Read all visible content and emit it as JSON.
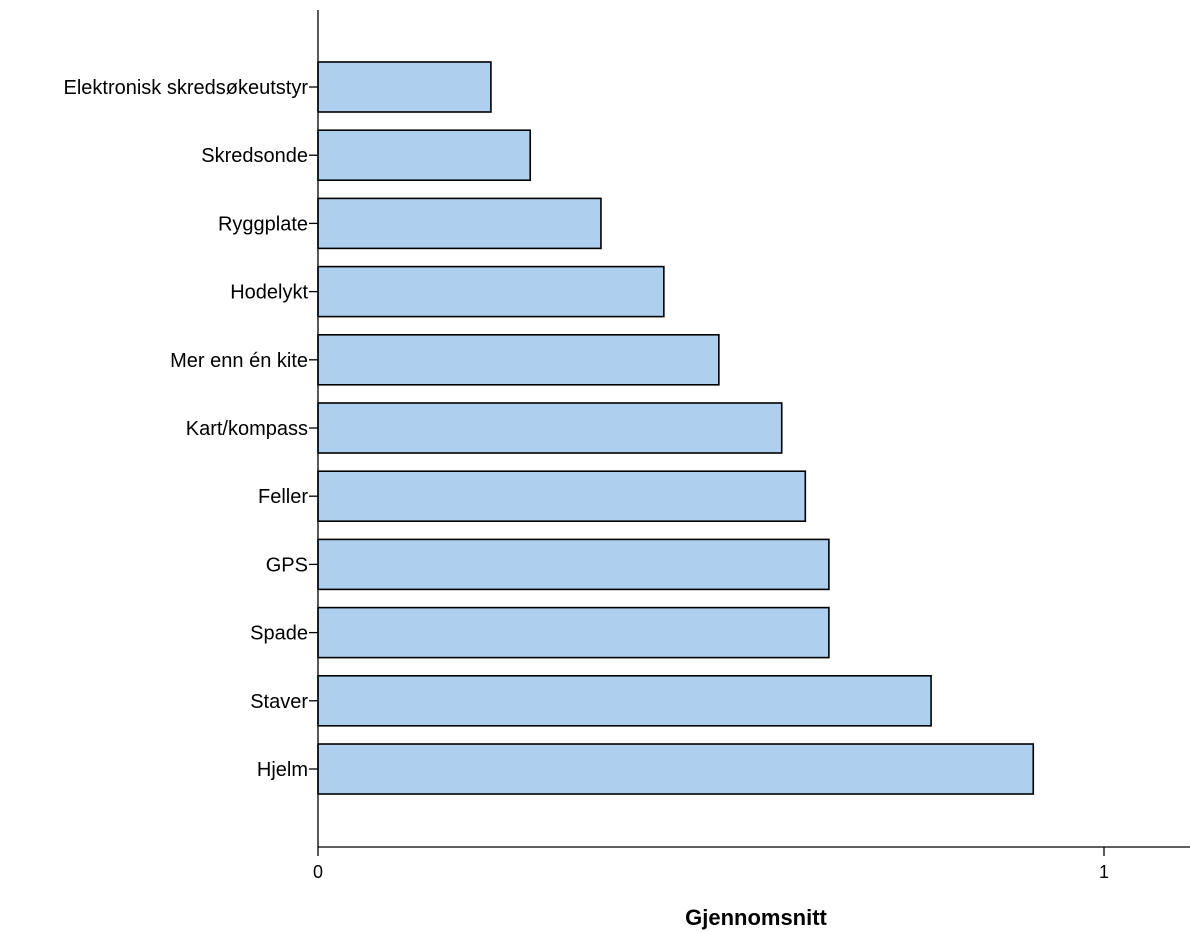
{
  "chart_data": {
    "type": "bar",
    "orientation": "horizontal",
    "categories": [
      "Elektronisk skredsøkeutstyr",
      "Skredsonde",
      "Ryggplate",
      "Hodelykt",
      "Mer enn én kite",
      "Kart/kompass",
      "Feller",
      "GPS",
      "Spade",
      "Staver",
      "Hjelm"
    ],
    "values": [
      0.22,
      0.27,
      0.36,
      0.44,
      0.51,
      0.59,
      0.62,
      0.65,
      0.65,
      0.78,
      0.91
    ],
    "xlabel": "Gjennomsnitt",
    "ylabel": "",
    "xlim": [
      0,
      1.11
    ],
    "xticks": [
      {
        "value": 0,
        "label": "0"
      },
      {
        "value": 1,
        "label": "1"
      }
    ],
    "grid": false,
    "bar_color": "#aecfee",
    "bar_edge_color": "#000000"
  }
}
